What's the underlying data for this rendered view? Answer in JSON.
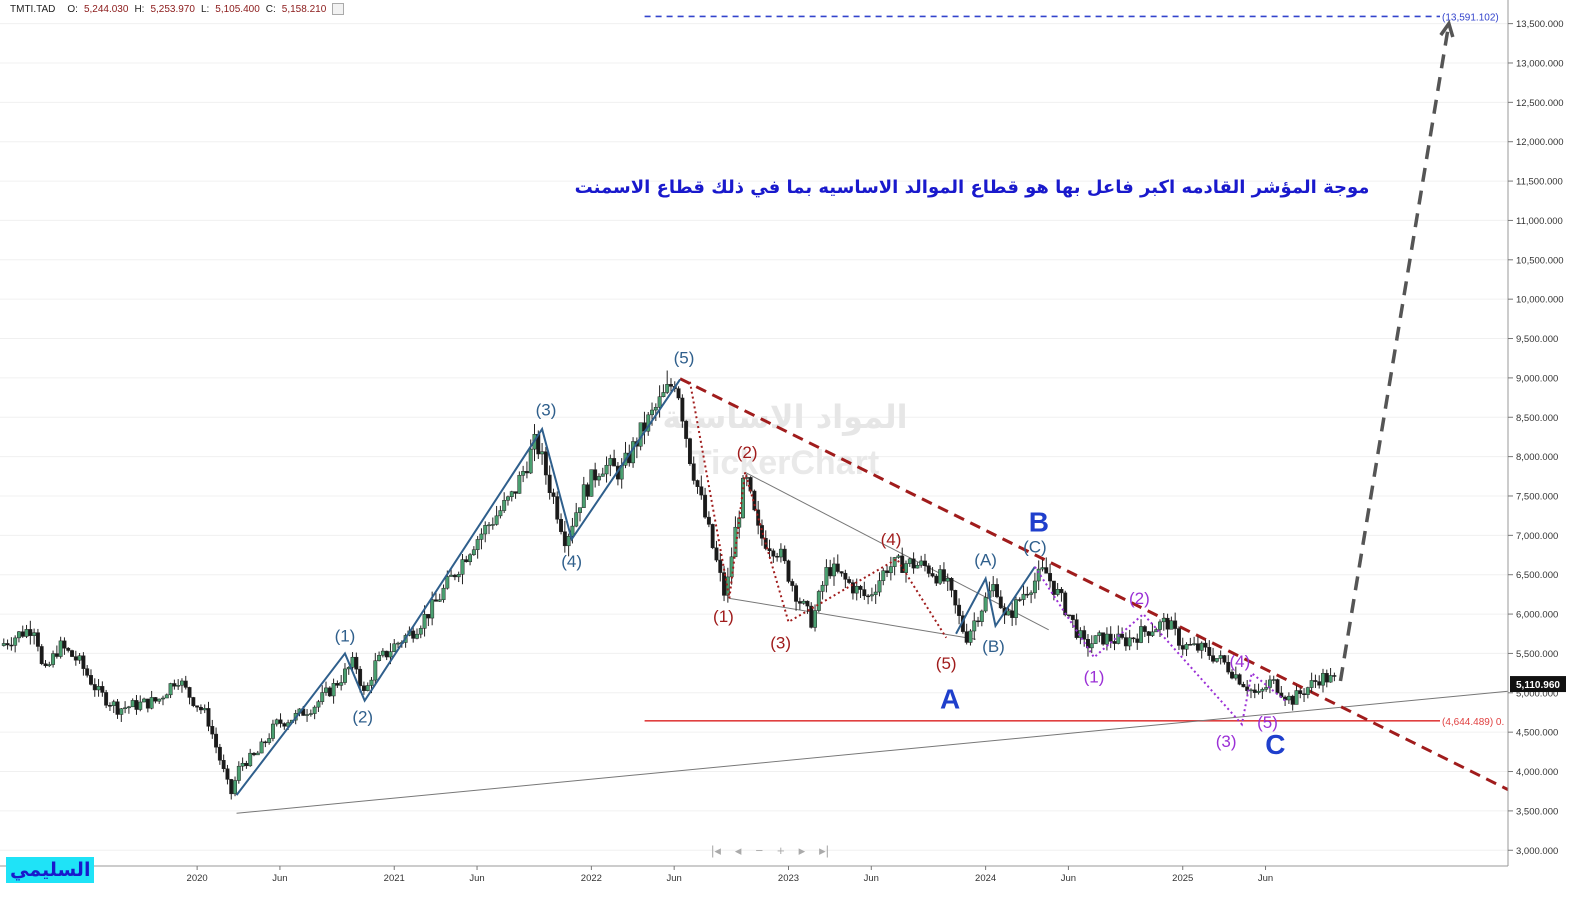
{
  "header": {
    "symbol": "TMTI.TAD",
    "o_label": "O:",
    "o_value": "5,244.030",
    "h_label": "H:",
    "h_value": "5,253.970",
    "l_label": "L:",
    "l_value": "5,105.400",
    "c_label": "C:",
    "c_value": "5,158.210"
  },
  "brand_label": "السليمي",
  "nav": {
    "first": "|◂",
    "prev": "◂",
    "zoom_out": "−",
    "zoom_in": "+",
    "next": "▸",
    "last": "▸|"
  },
  "chart_data": {
    "type": "candlestick",
    "title": "موجة المؤشر القادمه اكبر فاعل بها هو قطاع الموالد الاساسيه بما في ذلك قطاع الاسمنت",
    "watermark_title": "المواد الاساسية",
    "watermark_brand": "TickerChart",
    "y_axis": {
      "ylim": [
        2800,
        13800
      ],
      "ticks": [
        3000,
        3500,
        4000,
        4500,
        5000,
        5500,
        6000,
        6500,
        7000,
        7500,
        8000,
        8500,
        9000,
        9500,
        10000,
        10500,
        11000,
        11500,
        12000,
        12500,
        13000,
        13500
      ],
      "tick_labels": [
        "3,000.000",
        "3,500.000",
        "4,000.000",
        "4,500.000",
        "5,000.000",
        "5,500.000",
        "6,000.000",
        "6,500.000",
        "7,000.000",
        "7,500.000",
        "8,000.000",
        "8,500.000",
        "9,000.000",
        "9,500.000",
        "10,000.000",
        "10,500.000",
        "11,000.000",
        "11,500.000",
        "12,000.000",
        "12,500.000",
        "13,000.000",
        "13,500.000"
      ],
      "last_price": 5110.96,
      "last_price_label": "5,110.960"
    },
    "x_axis": {
      "xlim": [
        2019.0,
        2026.65
      ],
      "ticks": [
        {
          "t": 2020.0,
          "label": "2020"
        },
        {
          "t": 2020.42,
          "label": "Jun"
        },
        {
          "t": 2021.0,
          "label": "2021"
        },
        {
          "t": 2021.42,
          "label": "Jun"
        },
        {
          "t": 2022.0,
          "label": "2022"
        },
        {
          "t": 2022.42,
          "label": "Jun"
        },
        {
          "t": 2023.0,
          "label": "2023"
        },
        {
          "t": 2023.42,
          "label": "Jun"
        },
        {
          "t": 2024.0,
          "label": "2024"
        },
        {
          "t": 2024.42,
          "label": "Jun"
        },
        {
          "t": 2025.0,
          "label": "2025"
        },
        {
          "t": 2025.42,
          "label": "Jun"
        }
      ]
    },
    "price_path": [
      [
        2019.0,
        5600
      ],
      [
        2019.1,
        5750
      ],
      [
        2019.18,
        5850
      ],
      [
        2019.22,
        5200
      ],
      [
        2019.3,
        5600
      ],
      [
        2019.4,
        5400
      ],
      [
        2019.5,
        5000
      ],
      [
        2019.6,
        4800
      ],
      [
        2019.7,
        4850
      ],
      [
        2019.8,
        4900
      ],
      [
        2019.9,
        5200
      ],
      [
        2019.95,
        5000
      ],
      [
        2020.05,
        4700
      ],
      [
        2020.17,
        3700
      ],
      [
        2020.22,
        4100
      ],
      [
        2020.3,
        4200
      ],
      [
        2020.4,
        4600
      ],
      [
        2020.5,
        4700
      ],
      [
        2020.6,
        4850
      ],
      [
        2020.7,
        5100
      ],
      [
        2020.8,
        5400
      ],
      [
        2020.85,
        4950
      ],
      [
        2020.9,
        5350
      ],
      [
        2021.0,
        5600
      ],
      [
        2021.1,
        5800
      ],
      [
        2021.2,
        6100
      ],
      [
        2021.3,
        6500
      ],
      [
        2021.4,
        6900
      ],
      [
        2021.5,
        7200
      ],
      [
        2021.6,
        7500
      ],
      [
        2021.72,
        8200
      ],
      [
        2021.78,
        7700
      ],
      [
        2021.87,
        6950
      ],
      [
        2021.95,
        7500
      ],
      [
        2022.05,
        7900
      ],
      [
        2022.15,
        7800
      ],
      [
        2022.25,
        8300
      ],
      [
        2022.35,
        8700
      ],
      [
        2022.43,
        9000
      ],
      [
        2022.5,
        8000
      ],
      [
        2022.6,
        7000
      ],
      [
        2022.68,
        6200
      ],
      [
        2022.72,
        6900
      ],
      [
        2022.78,
        7750
      ],
      [
        2022.85,
        7000
      ],
      [
        2022.95,
        6800
      ],
      [
        2023.05,
        6200
      ],
      [
        2023.12,
        5900
      ],
      [
        2023.2,
        6600
      ],
      [
        2023.3,
        6400
      ],
      [
        2023.4,
        6200
      ],
      [
        2023.5,
        6600
      ],
      [
        2023.6,
        6650
      ],
      [
        2023.7,
        6600
      ],
      [
        2023.8,
        6400
      ],
      [
        2023.9,
        5700
      ],
      [
        2023.96,
        6000
      ],
      [
        2024.05,
        6400
      ],
      [
        2024.1,
        5900
      ],
      [
        2024.2,
        6300
      ],
      [
        2024.3,
        6550
      ],
      [
        2024.4,
        6100
      ],
      [
        2024.5,
        5600
      ],
      [
        2024.6,
        5700
      ],
      [
        2024.7,
        5650
      ],
      [
        2024.82,
        5800
      ],
      [
        2024.92,
        5900
      ],
      [
        2025.0,
        5600
      ],
      [
        2025.1,
        5550
      ],
      [
        2025.2,
        5400
      ],
      [
        2025.3,
        5150
      ],
      [
        2025.38,
        4950
      ],
      [
        2025.45,
        5150
      ],
      [
        2025.55,
        4900
      ],
      [
        2025.6,
        5000
      ],
      [
        2025.7,
        5200
      ],
      [
        2025.77,
        5158
      ]
    ],
    "lines": {
      "resistance_dashed": {
        "from": [
          2022.45,
          8990
        ],
        "to": [
          2026.65,
          3770
        ],
        "color": "#a01c1c"
      },
      "support_long": {
        "from": [
          2020.2,
          3470
        ],
        "to": [
          2026.65,
          5020
        ],
        "color": "#777777"
      },
      "wedge_top": {
        "from": [
          2022.78,
          7800
        ],
        "to": [
          2024.32,
          5800
        ],
        "color": "#777777"
      },
      "wedge_bottom": {
        "from": [
          2022.7,
          6200
        ],
        "to": [
          2023.95,
          5680
        ],
        "color": "#777777"
      },
      "target_level": {
        "value": 13591.102,
        "label": "(13,591.102)",
        "color": "#3344cc",
        "from_t": 2022.27
      },
      "support_level": {
        "value": 4644.489,
        "label": "(4,644.489) 0.",
        "color": "#e04040",
        "from_t": 2022.27
      },
      "projection_arrow": {
        "from": [
          2025.8,
          5150
        ],
        "to": [
          2026.35,
          13500
        ],
        "color": "#555555"
      }
    },
    "wave_paths": {
      "impulse_blue": {
        "color": "#2f5f8c",
        "points": [
          [
            2020.2,
            3700
          ],
          [
            2020.75,
            5500
          ],
          [
            2020.85,
            4900
          ],
          [
            2021.75,
            8350
          ],
          [
            2021.9,
            6950
          ],
          [
            2022.45,
            8980
          ]
        ]
      },
      "corrective_red": {
        "color": "#a01c1c",
        "points": [
          [
            2022.5,
            8950
          ],
          [
            2022.7,
            6200
          ],
          [
            2022.78,
            7800
          ],
          [
            2023.0,
            5900
          ],
          [
            2023.55,
            6700
          ],
          [
            2023.8,
            5700
          ]
        ]
      },
      "b_blue": {
        "color": "#2f5f8c",
        "points": [
          [
            2023.85,
            5750
          ],
          [
            2024.0,
            6450
          ],
          [
            2024.05,
            5850
          ],
          [
            2024.25,
            6600
          ]
        ]
      },
      "c_purple": {
        "color": "#9b30d6",
        "points": [
          [
            2024.25,
            6600
          ],
          [
            2024.55,
            5450
          ],
          [
            2024.8,
            6000
          ],
          [
            2025.3,
            4600
          ],
          [
            2025.35,
            5250
          ],
          [
            2025.52,
            4900
          ]
        ]
      }
    },
    "wave_labels": [
      {
        "text": "(1)",
        "t": 2020.75,
        "v": 5650,
        "color": "#2f5f8c",
        "size": 17
      },
      {
        "text": "(2)",
        "t": 2020.84,
        "v": 4620,
        "color": "#2f5f8c",
        "size": 17
      },
      {
        "text": "(3)",
        "t": 2021.77,
        "v": 8520,
        "color": "#2f5f8c",
        "size": 17
      },
      {
        "text": "(4)",
        "t": 2021.9,
        "v": 6600,
        "color": "#2f5f8c",
        "size": 17
      },
      {
        "text": "(5)",
        "t": 2022.47,
        "v": 9180,
        "color": "#2f5f8c",
        "size": 17
      },
      {
        "text": "(1)",
        "t": 2022.67,
        "v": 5900,
        "color": "#a01c1c",
        "size": 17
      },
      {
        "text": "(2)",
        "t": 2022.79,
        "v": 7980,
        "color": "#a01c1c",
        "size": 17
      },
      {
        "text": "(3)",
        "t": 2022.96,
        "v": 5560,
        "color": "#a01c1c",
        "size": 17
      },
      {
        "text": "(4)",
        "t": 2023.52,
        "v": 6880,
        "color": "#a01c1c",
        "size": 17
      },
      {
        "text": "(5)",
        "t": 2023.8,
        "v": 5300,
        "color": "#a01c1c",
        "size": 17
      },
      {
        "text": "A",
        "t": 2023.82,
        "v": 4800,
        "color": "#1f3fcc",
        "size": 28
      },
      {
        "text": "(A)",
        "t": 2024.0,
        "v": 6620,
        "color": "#2f5f8c",
        "size": 17
      },
      {
        "text": "(B)",
        "t": 2024.04,
        "v": 5520,
        "color": "#2f5f8c",
        "size": 17
      },
      {
        "text": "(C)",
        "t": 2024.25,
        "v": 6780,
        "color": "#2f5f8c",
        "size": 17
      },
      {
        "text": "B",
        "t": 2024.27,
        "v": 7050,
        "color": "#1f3fcc",
        "size": 28
      },
      {
        "text": "(1)",
        "t": 2024.55,
        "v": 5130,
        "color": "#9b30d6",
        "size": 17
      },
      {
        "text": "(2)",
        "t": 2024.78,
        "v": 6130,
        "color": "#9b30d6",
        "size": 17
      },
      {
        "text": "(3)",
        "t": 2025.22,
        "v": 4310,
        "color": "#9b30d6",
        "size": 17
      },
      {
        "text": "(4)",
        "t": 2025.29,
        "v": 5330,
        "color": "#9b30d6",
        "size": 17
      },
      {
        "text": "(5)",
        "t": 2025.43,
        "v": 4550,
        "color": "#9b30d6",
        "size": 17
      },
      {
        "text": "C",
        "t": 2025.47,
        "v": 4220,
        "color": "#1f3fcc",
        "size": 28
      }
    ],
    "colors": {
      "up": "#4a9f70",
      "down": "#1a1a1a",
      "grid": "#f0f0f0",
      "axis_text": "#333333",
      "title": "#1919cc"
    }
  }
}
